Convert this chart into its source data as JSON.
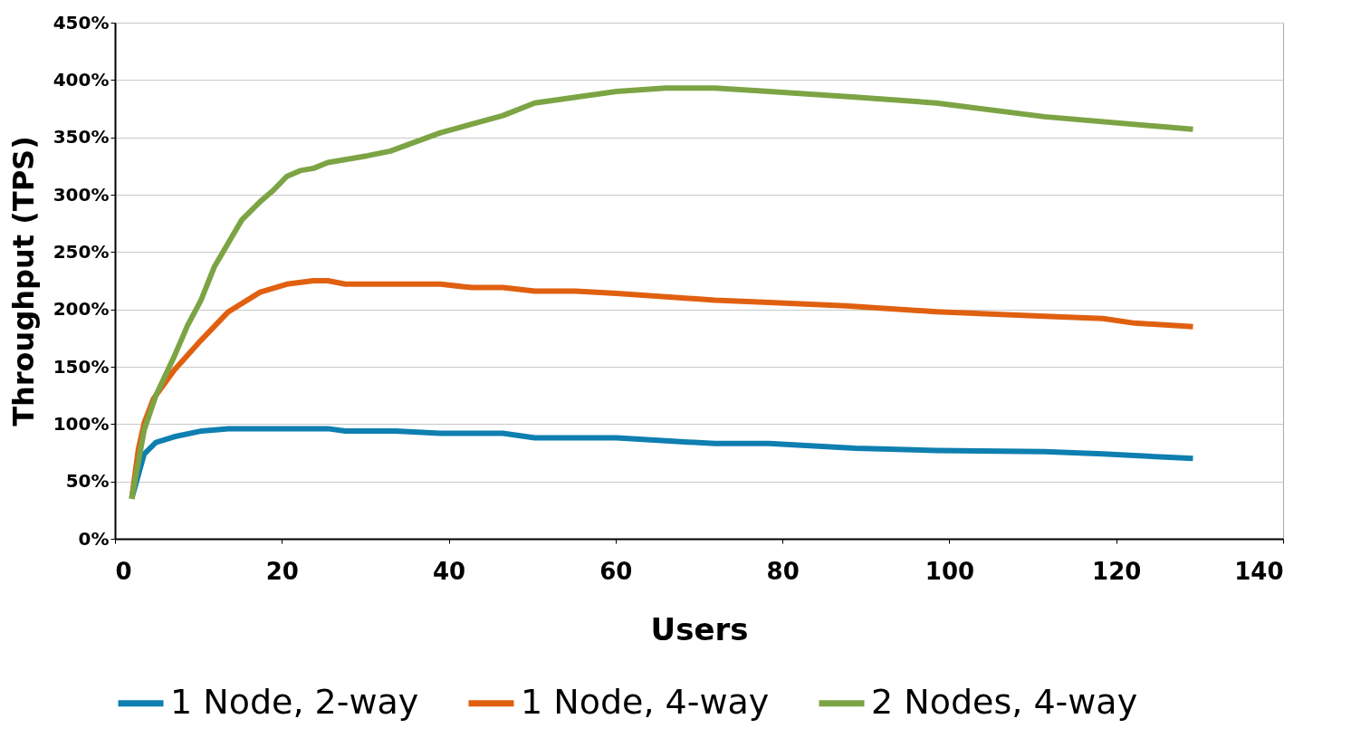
{
  "chart_data": {
    "type": "line",
    "xlabel": "Users",
    "ylabel": "Throughput (TPS)",
    "xlim": [
      0,
      140
    ],
    "xticks": [
      0,
      20,
      40,
      60,
      80,
      100,
      120,
      140
    ],
    "ylim": [
      0,
      450
    ],
    "yticks": [
      {
        "value": 0,
        "label": "0%"
      },
      {
        "value": 50,
        "label": "50%"
      },
      {
        "value": 100,
        "label": "100%"
      },
      {
        "value": 150,
        "label": "150%"
      },
      {
        "value": 200,
        "label": "200%"
      },
      {
        "value": 250,
        "label": "250%"
      },
      {
        "value": 300,
        "label": "300%"
      },
      {
        "value": 350,
        "label": "350%"
      },
      {
        "value": 400,
        "label": "400%"
      },
      {
        "value": 450,
        "label": "450%"
      }
    ],
    "grid": "y",
    "legend": "bottom",
    "marker": "none",
    "line_style": "solid",
    "series": [
      {
        "name": "1 Node, 2-way",
        "color": "#0e7fb0",
        "x": [
          2,
          3.5,
          4.9,
          7.1,
          10.4,
          13.6,
          25.5,
          27.6,
          33.6,
          39,
          46.5,
          50.3,
          60.1,
          71.9,
          78.4,
          88.7,
          98.4,
          111.4,
          118.4,
          129.2
        ],
        "values": [
          35,
          74,
          84,
          89,
          94,
          96,
          96,
          94,
          94,
          92,
          92,
          88,
          88,
          83,
          83,
          79,
          77,
          76,
          74,
          70
        ]
      },
      {
        "name": "1 Node, 4-way",
        "color": "#e06010",
        "x": [
          2,
          2.8,
          3.5,
          4.6,
          7.1,
          10.3,
          13.6,
          17.4,
          20.6,
          23.8,
          25.5,
          27.6,
          39,
          42.8,
          46.5,
          50.3,
          55.2,
          60.1,
          71.9,
          78.4,
          87.6,
          98.4,
          111.4,
          118.4,
          122.2,
          129.2
        ],
        "values": [
          35,
          78,
          101,
          122,
          147,
          173,
          198,
          215,
          222,
          225,
          225,
          222,
          222,
          219,
          219,
          216,
          216,
          214,
          208,
          206,
          203,
          198,
          194,
          192,
          188,
          185
        ]
      },
      {
        "name": "2 Nodes, 4-way",
        "color": "#7ca444",
        "x": [
          2,
          3.5,
          4.9,
          7.1,
          8.7,
          10.3,
          11.9,
          15.2,
          17.4,
          19,
          20.6,
          22.2,
          23.8,
          25.5,
          30.3,
          33,
          39,
          46.5,
          50.3,
          60.1,
          66,
          71.9,
          78.4,
          88.7,
          98.4,
          111.4,
          129.2
        ],
        "values": [
          35,
          95,
          125,
          159,
          186,
          208,
          237,
          278,
          294,
          304,
          316,
          321,
          323,
          328,
          334,
          338,
          354,
          369,
          380,
          390,
          393,
          393,
          390,
          385,
          380,
          368,
          357
        ]
      }
    ]
  }
}
